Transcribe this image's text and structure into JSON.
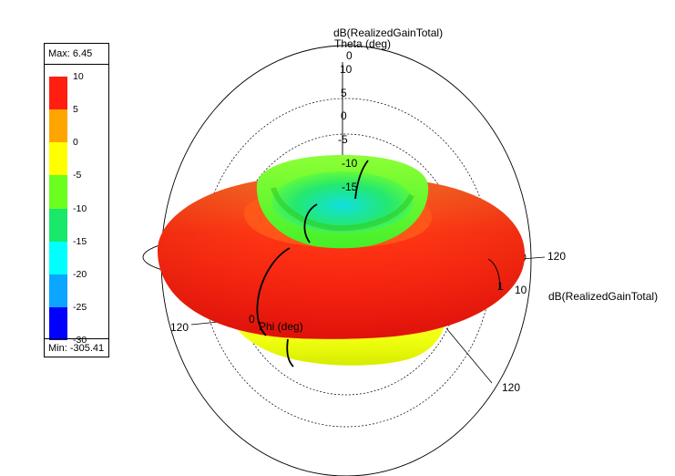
{
  "legend": {
    "max_label": "Max: 6.45",
    "min_label": "Min: -305.41",
    "ticks": [
      "10",
      "5",
      "0",
      "-5",
      "-10",
      "-15",
      "-20",
      "-25",
      "-30"
    ],
    "colors": [
      "#ff1e10",
      "#ffa500",
      "#ffff00",
      "#6aff1e",
      "#19e86a",
      "#00ffff",
      "#0aa6ff",
      "#0000ff"
    ]
  },
  "plot": {
    "quantity_top": "dB(RealizedGainTotal)",
    "theta_label": "Theta (deg)",
    "theta_zero": "0",
    "radial_ticks": [
      "10",
      "5",
      "0",
      "-5",
      "-10",
      "-15"
    ],
    "right_axis_label": "dB(RealizedGainTotal)",
    "right_axis_120": "120",
    "right_axis_val": "10",
    "left_120": "120",
    "bottom_120": "120",
    "phi_label": "Phi (deg)",
    "phi_zero": "0",
    "right_axis_small": "1"
  }
}
